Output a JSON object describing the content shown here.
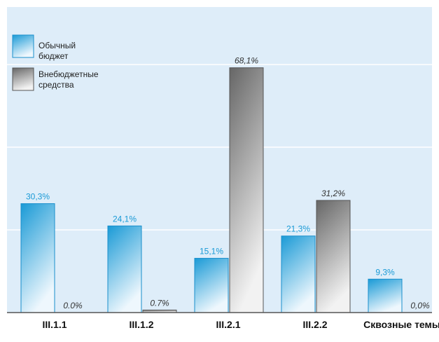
{
  "chart_data": {
    "type": "bar",
    "categories": [
      "III.1.1",
      "III.1.2",
      "III.2.1",
      "III.2.2",
      "Сквозные темы"
    ],
    "series": [
      {
        "name": "Обычный бюджет",
        "color": "#1a9ad6",
        "values": [
          30.3,
          24.1,
          15.1,
          21.3,
          9.3
        ],
        "value_labels": [
          "30,3%",
          "24,1%",
          "15,1%",
          "21,3%",
          "9,3%"
        ]
      },
      {
        "name": "Внебюджетные средства",
        "color": "#666666",
        "values": [
          0.0,
          0.7,
          68.1,
          31.2,
          0.0
        ],
        "value_labels": [
          "0.0%",
          "0.7%",
          "68,1%",
          "31,2%",
          "0,0%"
        ]
      }
    ],
    "ylim": [
      0,
      85
    ],
    "yticks": [
      0,
      23,
      46,
      69
    ],
    "grid": true,
    "legend": "upper left"
  }
}
